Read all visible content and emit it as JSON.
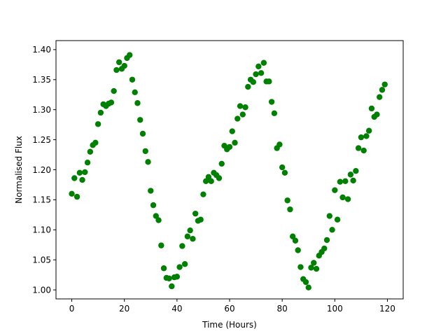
{
  "chart_data": {
    "type": "scatter",
    "title": "",
    "xlabel": "Time (Hours)",
    "ylabel": "Normalised Flux",
    "xlim": [
      -6,
      126
    ],
    "ylim": [
      0.985,
      1.415
    ],
    "x_ticks": [
      0,
      20,
      40,
      60,
      80,
      100,
      120
    ],
    "y_ticks": [
      1.0,
      1.05,
      1.1,
      1.15,
      1.2,
      1.25,
      1.3,
      1.35,
      1.4
    ],
    "x_tick_labels": [
      "0",
      "20",
      "40",
      "60",
      "80",
      "100",
      "120"
    ],
    "y_tick_labels": [
      "1.00",
      "1.05",
      "1.10",
      "1.15",
      "1.20",
      "1.25",
      "1.30",
      "1.35",
      "1.40"
    ],
    "grid": false,
    "legend": false,
    "marker_color": "#008000",
    "series": [
      {
        "points": [
          [
            0,
            1.16
          ],
          [
            1,
            1.186
          ],
          [
            2,
            1.155
          ],
          [
            3,
            1.195
          ],
          [
            4,
            1.183
          ],
          [
            5,
            1.196
          ],
          [
            6,
            1.212
          ],
          [
            7,
            1.23
          ],
          [
            8,
            1.241
          ],
          [
            9,
            1.245
          ],
          [
            10,
            1.276
          ],
          [
            11,
            1.295
          ],
          [
            12,
            1.309
          ],
          [
            13,
            1.306
          ],
          [
            14,
            1.31
          ],
          [
            15,
            1.312
          ],
          [
            16,
            1.331
          ],
          [
            17,
            1.366
          ],
          [
            18,
            1.379
          ],
          [
            19,
            1.368
          ],
          [
            20,
            1.373
          ],
          [
            21,
            1.386
          ],
          [
            22,
            1.391
          ],
          [
            23,
            1.35
          ],
          [
            24,
            1.329
          ],
          [
            25,
            1.311
          ],
          [
            26,
            1.283
          ],
          [
            27,
            1.26
          ],
          [
            28,
            1.231
          ],
          [
            29,
            1.213
          ],
          [
            30,
            1.165
          ],
          [
            31,
            1.141
          ],
          [
            32,
            1.123
          ],
          [
            33,
            1.116
          ],
          [
            34,
            1.074
          ],
          [
            35,
            1.036
          ],
          [
            36,
            1.02
          ],
          [
            37,
            1.019
          ],
          [
            38,
            1.006
          ],
          [
            39,
            1.021
          ],
          [
            40,
            1.022
          ],
          [
            41,
            1.038
          ],
          [
            42,
            1.073
          ],
          [
            43,
            1.043
          ],
          [
            44,
            1.089
          ],
          [
            45,
            1.099
          ],
          [
            46,
            1.085
          ],
          [
            47,
            1.127
          ],
          [
            48,
            1.115
          ],
          [
            49,
            1.117
          ],
          [
            50,
            1.159
          ],
          [
            51,
            1.181
          ],
          [
            52,
            1.188
          ],
          [
            53,
            1.181
          ],
          [
            54,
            1.195
          ],
          [
            55,
            1.191
          ],
          [
            56,
            1.186
          ],
          [
            57,
            1.21
          ],
          [
            58,
            1.24
          ],
          [
            59,
            1.234
          ],
          [
            60,
            1.238
          ],
          [
            61,
            1.264
          ],
          [
            62,
            1.245
          ],
          [
            63,
            1.285
          ],
          [
            64,
            1.306
          ],
          [
            65,
            1.292
          ],
          [
            66,
            1.304
          ],
          [
            67,
            1.338
          ],
          [
            68,
            1.35
          ],
          [
            69,
            1.346
          ],
          [
            70,
            1.359
          ],
          [
            71,
            1.372
          ],
          [
            72,
            1.361
          ],
          [
            73,
            1.378
          ],
          [
            74,
            1.347
          ],
          [
            75,
            1.347
          ],
          [
            76,
            1.313
          ],
          [
            77,
            1.294
          ],
          [
            78,
            1.236
          ],
          [
            79,
            1.242
          ],
          [
            80,
            1.204
          ],
          [
            81,
            1.195
          ],
          [
            82,
            1.149
          ],
          [
            83,
            1.134
          ],
          [
            84,
            1.089
          ],
          [
            85,
            1.082
          ],
          [
            86,
            1.066
          ],
          [
            87,
            1.038
          ],
          [
            88,
            1.018
          ],
          [
            89,
            1.013
          ],
          [
            90,
            1.004
          ],
          [
            91,
            1.037
          ],
          [
            92,
            1.045
          ],
          [
            93,
            1.035
          ],
          [
            94,
            1.057
          ],
          [
            95,
            1.063
          ],
          [
            96,
            1.069
          ],
          [
            97,
            1.083
          ],
          [
            98,
            1.123
          ],
          [
            99,
            1.1
          ],
          [
            100,
            1.166
          ],
          [
            101,
            1.117
          ],
          [
            102,
            1.18
          ],
          [
            103,
            1.154
          ],
          [
            104,
            1.181
          ],
          [
            105,
            1.151
          ],
          [
            106,
            1.192
          ],
          [
            107,
            1.182
          ],
          [
            108,
            1.198
          ],
          [
            109,
            1.236
          ],
          [
            110,
            1.254
          ],
          [
            111,
            1.232
          ],
          [
            112,
            1.256
          ],
          [
            113,
            1.265
          ],
          [
            114,
            1.302
          ],
          [
            115,
            1.288
          ],
          [
            116,
            1.292
          ],
          [
            117,
            1.321
          ],
          [
            118,
            1.333
          ],
          [
            119,
            1.342
          ]
        ]
      }
    ]
  }
}
